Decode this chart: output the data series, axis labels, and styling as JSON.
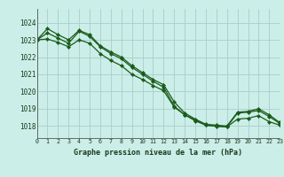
{
  "title": "Graphe pression niveau de la mer (hPa)",
  "background_color": "#cceee8",
  "grid_color": "#aacccc",
  "line_color": "#1a5c1a",
  "marker_color": "#1a5c1a",
  "ylim": [
    1017.3,
    1024.8
  ],
  "xlim": [
    0,
    23
  ],
  "yticks": [
    1018,
    1019,
    1020,
    1021,
    1022,
    1023,
    1024
  ],
  "xticks": [
    0,
    1,
    2,
    3,
    4,
    5,
    6,
    7,
    8,
    9,
    10,
    11,
    12,
    13,
    14,
    15,
    16,
    17,
    18,
    19,
    20,
    21,
    22,
    23
  ],
  "line1": [
    1023.0,
    1023.4,
    1023.1,
    1022.8,
    1023.5,
    1023.2,
    1022.6,
    1022.2,
    1021.9,
    1021.4,
    1021.0,
    1020.6,
    1020.25,
    1019.15,
    1018.65,
    1018.35,
    1018.05,
    1018.0,
    1017.95,
    1018.75,
    1018.8,
    1018.9,
    1018.55,
    1018.15
  ],
  "line2": [
    1023.0,
    1023.65,
    1023.3,
    1023.0,
    1023.55,
    1023.3,
    1022.65,
    1022.3,
    1022.0,
    1021.5,
    1021.1,
    1020.7,
    1020.4,
    1019.4,
    1018.75,
    1018.4,
    1018.1,
    1018.05,
    1018.0,
    1018.8,
    1018.85,
    1019.0,
    1018.65,
    1018.2
  ],
  "line3": [
    1023.0,
    1023.05,
    1022.85,
    1022.6,
    1023.0,
    1022.8,
    1022.2,
    1021.8,
    1021.5,
    1021.0,
    1020.7,
    1020.35,
    1020.05,
    1019.1,
    1018.65,
    1018.3,
    1018.05,
    1017.98,
    1017.95,
    1018.4,
    1018.45,
    1018.6,
    1018.25,
    1018.05
  ]
}
